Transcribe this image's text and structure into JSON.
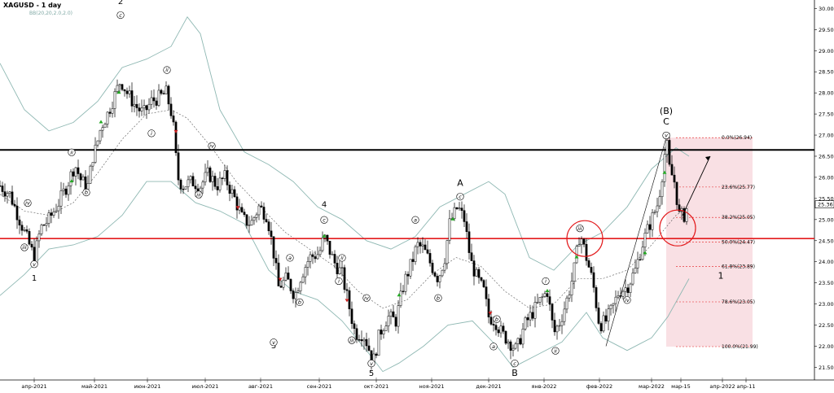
{
  "header": {
    "title": "XAGUSD - 1 day",
    "indicator": "BB(20,20,2.0,2.0)"
  },
  "colors": {
    "background": "#ffffff",
    "bull_candle": "#ffffff",
    "bear_candle": "#000000",
    "bollinger": "#8fb8b3",
    "middle_band": "#555555",
    "resistance": "#000000",
    "support": "#e31a1c",
    "fib_zone": "#f4c7cd",
    "circle": "#e31a1c",
    "arrow_up": "#22aa22",
    "arrow_down": "#cc2222"
  },
  "chart_data": {
    "type": "candlestick",
    "symbol": "XAGUSD",
    "timeframe": "1 day",
    "ylim": [
      21.2,
      30.2
    ],
    "y_ticks": [
      "21.50",
      "22.00",
      "22.50",
      "23.00",
      "23.50",
      "24.00",
      "24.50",
      "25.00",
      "25.50",
      "26.00",
      "26.50",
      "27.00",
      "27.50",
      "28.00",
      "28.50",
      "29.00",
      "29.50",
      "30.00"
    ],
    "x_ticks": [
      "апр-2021",
      "май-2021",
      "июн-2021",
      "июл-2021",
      "авг-2021",
      "сен-2021",
      "окт-2021",
      "ноя-2021",
      "дек-2021",
      "янв-2022",
      "фев-2022",
      "мар-2022",
      "мар-15",
      "апр-2022",
      "апр-11"
    ],
    "current_price": "25.36",
    "resistance_level": 26.65,
    "support_level": 24.55,
    "fib_levels": [
      {
        "pct": "0.0%",
        "price": 26.94,
        "label": "0.0%(26.94)"
      },
      {
        "pct": "23.6%",
        "price": 25.77,
        "label": "23.6%(25.77)"
      },
      {
        "pct": "38.2%",
        "price": 25.05,
        "label": "38.2%(25.05)"
      },
      {
        "pct": "50.0%",
        "price": 24.47,
        "label": "50.0%(24.47)"
      },
      {
        "pct": "61.8%",
        "price": 23.89,
        "label": "61.8%(23.89)"
      },
      {
        "pct": "78.6%",
        "price": 23.05,
        "label": "78.6%(23.05)"
      },
      {
        "pct": "100.0%",
        "price": 21.99,
        "label": "100.0%(21.99)"
      }
    ],
    "price_path": [
      [
        0,
        25.8
      ],
      [
        12,
        25.6
      ],
      [
        24,
        25.0
      ],
      [
        36,
        24.4
      ],
      [
        42,
        24.1
      ],
      [
        50,
        24.8
      ],
      [
        60,
        25.0
      ],
      [
        72,
        25.4
      ],
      [
        82,
        25.8
      ],
      [
        92,
        26.3
      ],
      [
        100,
        25.9
      ],
      [
        108,
        25.8
      ],
      [
        114,
        26.5
      ],
      [
        118,
        26.7
      ],
      [
        124,
        27.2
      ],
      [
        132,
        27.5
      ],
      [
        140,
        27.9
      ],
      [
        148,
        28.3
      ],
      [
        156,
        28.0
      ],
      [
        166,
        27.7
      ],
      [
        176,
        27.5
      ],
      [
        186,
        27.8
      ],
      [
        196,
        27.9
      ],
      [
        204,
        28.0
      ],
      [
        212,
        27.4
      ],
      [
        218,
        26.0
      ],
      [
        224,
        25.8
      ],
      [
        236,
        25.9
      ],
      [
        246,
        25.8
      ],
      [
        256,
        26.1
      ],
      [
        266,
        25.8
      ],
      [
        276,
        26.0
      ],
      [
        288,
        25.5
      ],
      [
        298,
        25.0
      ],
      [
        308,
        24.9
      ],
      [
        318,
        25.3
      ],
      [
        328,
        25.1
      ],
      [
        336,
        24.2
      ],
      [
        342,
        23.4
      ],
      [
        352,
        23.6
      ],
      [
        362,
        23.2
      ],
      [
        370,
        23.7
      ],
      [
        380,
        24.1
      ],
      [
        392,
        24.2
      ],
      [
        398,
        24.6
      ],
      [
        404,
        24.3
      ],
      [
        410,
        24.0
      ],
      [
        420,
        23.7
      ],
      [
        428,
        23.0
      ],
      [
        436,
        22.3
      ],
      [
        446,
        22.3
      ],
      [
        452,
        22.0
      ],
      [
        458,
        21.6
      ],
      [
        466,
        22.3
      ],
      [
        476,
        22.7
      ],
      [
        486,
        22.6
      ],
      [
        496,
        23.5
      ],
      [
        506,
        24.0
      ],
      [
        512,
        24.4
      ],
      [
        520,
        24.3
      ],
      [
        530,
        23.9
      ],
      [
        538,
        23.6
      ],
      [
        546,
        24.1
      ],
      [
        552,
        24.9
      ],
      [
        562,
        25.3
      ],
      [
        570,
        25.0
      ],
      [
        578,
        24.0
      ],
      [
        586,
        23.6
      ],
      [
        594,
        23.3
      ],
      [
        600,
        22.7
      ],
      [
        608,
        22.6
      ],
      [
        616,
        22.3
      ],
      [
        626,
        22.1
      ],
      [
        634,
        21.9
      ],
      [
        644,
        22.5
      ],
      [
        654,
        22.8
      ],
      [
        664,
        23.1
      ],
      [
        672,
        23.3
      ],
      [
        680,
        22.3
      ],
      [
        688,
        22.6
      ],
      [
        696,
        23.1
      ],
      [
        704,
        23.7
      ],
      [
        712,
        24.7
      ],
      [
        720,
        24.1
      ],
      [
        728,
        23.5
      ],
      [
        736,
        22.5
      ],
      [
        744,
        22.6
      ],
      [
        752,
        22.9
      ],
      [
        760,
        23.3
      ],
      [
        770,
        23.4
      ],
      [
        780,
        23.8
      ],
      [
        790,
        24.5
      ],
      [
        800,
        25.0
      ],
      [
        808,
        25.4
      ],
      [
        814,
        26.2
      ],
      [
        818,
        26.9
      ],
      [
        822,
        26.2
      ],
      [
        828,
        25.9
      ],
      [
        834,
        25.1
      ],
      [
        840,
        25.1
      ],
      [
        845,
        25.36
      ]
    ],
    "bollinger_upper": [
      [
        0,
        28.7
      ],
      [
        30,
        27.6
      ],
      [
        60,
        27.1
      ],
      [
        90,
        27.3
      ],
      [
        120,
        27.8
      ],
      [
        150,
        28.6
      ],
      [
        180,
        28.8
      ],
      [
        210,
        29.1
      ],
      [
        230,
        29.8
      ],
      [
        246,
        29.4
      ],
      [
        270,
        27.6
      ],
      [
        300,
        26.6
      ],
      [
        330,
        26.3
      ],
      [
        360,
        25.9
      ],
      [
        390,
        25.3
      ],
      [
        420,
        25.0
      ],
      [
        450,
        24.5
      ],
      [
        480,
        24.3
      ],
      [
        510,
        24.6
      ],
      [
        540,
        25.3
      ],
      [
        570,
        25.6
      ],
      [
        600,
        25.9
      ],
      [
        620,
        25.6
      ],
      [
        650,
        24.1
      ],
      [
        680,
        23.8
      ],
      [
        710,
        24.4
      ],
      [
        740,
        24.7
      ],
      [
        770,
        25.3
      ],
      [
        800,
        26.2
      ],
      [
        830,
        26.7
      ],
      [
        846,
        26.5
      ]
    ],
    "bollinger_middle": [
      [
        0,
        25.6
      ],
      [
        30,
        25.2
      ],
      [
        60,
        25.1
      ],
      [
        90,
        25.4
      ],
      [
        120,
        26.1
      ],
      [
        150,
        26.9
      ],
      [
        180,
        27.5
      ],
      [
        210,
        27.6
      ],
      [
        230,
        27.4
      ],
      [
        260,
        26.7
      ],
      [
        290,
        25.9
      ],
      [
        320,
        25.3
      ],
      [
        350,
        24.7
      ],
      [
        380,
        24.3
      ],
      [
        410,
        23.9
      ],
      [
        440,
        23.3
      ],
      [
        470,
        22.9
      ],
      [
        500,
        23.1
      ],
      [
        530,
        23.7
      ],
      [
        560,
        24.1
      ],
      [
        590,
        23.9
      ],
      [
        620,
        23.3
      ],
      [
        650,
        22.9
      ],
      [
        680,
        23.0
      ],
      [
        710,
        23.6
      ],
      [
        740,
        23.6
      ],
      [
        770,
        23.8
      ],
      [
        800,
        24.4
      ],
      [
        830,
        25.1
      ],
      [
        846,
        25.3
      ]
    ],
    "bollinger_lower": [
      [
        0,
        23.2
      ],
      [
        30,
        23.7
      ],
      [
        60,
        24.3
      ],
      [
        90,
        24.4
      ],
      [
        120,
        24.6
      ],
      [
        150,
        25.1
      ],
      [
        180,
        25.9
      ],
      [
        210,
        25.9
      ],
      [
        240,
        25.4
      ],
      [
        270,
        25.2
      ],
      [
        300,
        24.9
      ],
      [
        330,
        23.8
      ],
      [
        360,
        23.3
      ],
      [
        390,
        23.1
      ],
      [
        420,
        22.6
      ],
      [
        450,
        21.9
      ],
      [
        470,
        21.4
      ],
      [
        490,
        21.6
      ],
      [
        520,
        22.0
      ],
      [
        550,
        22.5
      ],
      [
        580,
        22.6
      ],
      [
        610,
        22.0
      ],
      [
        630,
        21.5
      ],
      [
        660,
        21.8
      ],
      [
        690,
        22.1
      ],
      [
        720,
        22.8
      ],
      [
        740,
        22.2
      ],
      [
        770,
        21.9
      ],
      [
        800,
        22.2
      ],
      [
        820,
        22.7
      ],
      [
        846,
        23.6
      ]
    ],
    "wave_labels": [
      {
        "text": "1",
        "t": 42,
        "p": 23.55,
        "kind": "num"
      },
      {
        "text": "2",
        "t": 148,
        "p": 30.1,
        "kind": "num"
      },
      {
        "text": "3",
        "t": 336,
        "p": 21.95,
        "kind": "num"
      },
      {
        "text": "4",
        "t": 398,
        "p": 25.3,
        "kind": "num"
      },
      {
        "text": "5",
        "t": 456,
        "p": 21.3,
        "kind": "num"
      },
      {
        "text": "A",
        "t": 565,
        "p": 25.8,
        "kind": "big"
      },
      {
        "text": "B",
        "t": 632,
        "p": 21.3,
        "kind": "big"
      },
      {
        "text": "(B)",
        "t": 818,
        "p": 27.5,
        "kind": "big"
      },
      {
        "text": "C",
        "t": 818,
        "p": 27.25,
        "kind": "big"
      },
      {
        "text": "1",
        "t": 885,
        "p": 23.6,
        "kind": "big"
      }
    ],
    "sub_waves": [
      {
        "text": "iii",
        "t": 30,
        "p": 24.3
      },
      {
        "text": "iv",
        "t": 34,
        "p": 25.35
      },
      {
        "text": "v",
        "t": 42,
        "p": 23.9
      },
      {
        "text": "ii",
        "t": 88,
        "p": 26.55
      },
      {
        "text": "b",
        "t": 106,
        "p": 25.6
      },
      {
        "text": "c",
        "t": 148,
        "p": 29.8
      },
      {
        "text": "ii",
        "t": 205,
        "p": 28.5
      },
      {
        "text": "i",
        "t": 186,
        "p": 27.0
      },
      {
        "text": "iv",
        "t": 260,
        "p": 26.7
      },
      {
        "text": "iii",
        "t": 244,
        "p": 25.55
      },
      {
        "text": "v",
        "t": 336,
        "p": 22.05
      },
      {
        "text": "a",
        "t": 356,
        "p": 24.05
      },
      {
        "text": "b",
        "t": 368,
        "p": 23.0
      },
      {
        "text": "c",
        "t": 398,
        "p": 24.95
      },
      {
        "text": "ii",
        "t": 420,
        "p": 24.05
      },
      {
        "text": "i",
        "t": 416,
        "p": 23.5
      },
      {
        "text": "iii",
        "t": 432,
        "p": 22.1
      },
      {
        "text": "iv",
        "t": 450,
        "p": 23.1
      },
      {
        "text": "v",
        "t": 456,
        "p": 21.55
      },
      {
        "text": "a",
        "t": 510,
        "p": 24.95
      },
      {
        "text": "b",
        "t": 538,
        "p": 23.1
      },
      {
        "text": "c",
        "t": 565,
        "p": 25.5
      },
      {
        "text": "b",
        "t": 610,
        "p": 22.6
      },
      {
        "text": "a",
        "t": 606,
        "p": 21.95
      },
      {
        "text": "c",
        "t": 632,
        "p": 21.55
      },
      {
        "text": "i",
        "t": 670,
        "p": 23.5
      },
      {
        "text": "ii",
        "t": 682,
        "p": 21.85
      },
      {
        "text": "iii",
        "t": 712,
        "p": 24.75
      },
      {
        "text": "iv",
        "t": 770,
        "p": 23.05
      },
      {
        "text": "v",
        "t": 818,
        "p": 26.95
      }
    ],
    "circles": [
      {
        "t": 718,
        "p": 24.55,
        "r": 22
      },
      {
        "t": 832,
        "p": 24.8,
        "r": 22
      }
    ],
    "forecast_arrow": {
      "from": [
        838,
        25.1
      ],
      "to": [
        872,
        26.5
      ]
    }
  }
}
